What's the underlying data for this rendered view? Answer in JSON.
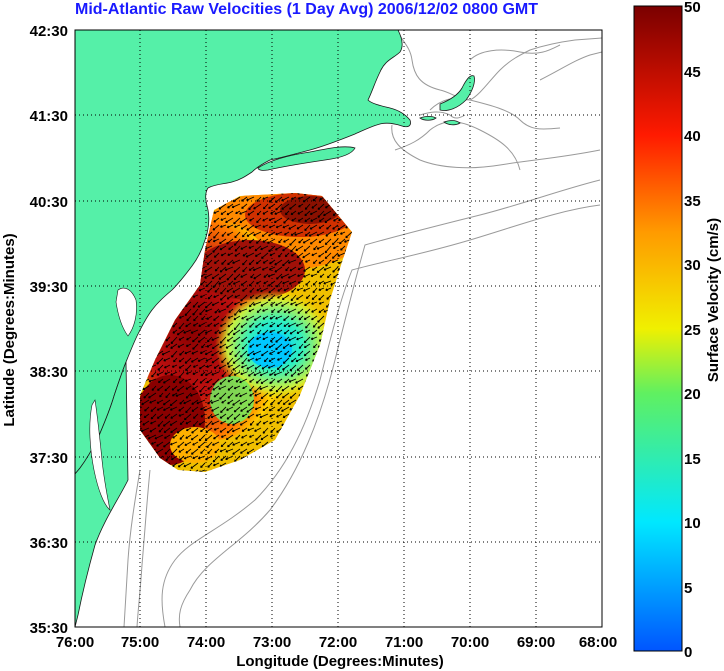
{
  "title": "Mid-Atlantic Raw Velocities (1 Day Avg) 2006/12/02 0800 GMT",
  "xlabel": "Longitude (Degrees:Minutes)",
  "ylabel": "Latitude (Degrees:Minutes)",
  "colorbar": {
    "label": "Surface Velocity (cm/s)",
    "ticks": [
      "0",
      "5",
      "10",
      "15",
      "20",
      "25",
      "30",
      "35",
      "40",
      "45",
      "50"
    ],
    "range": [
      0,
      50
    ]
  },
  "x_ticks": [
    "76:00",
    "75:00",
    "74:00",
    "73:00",
    "72:00",
    "71:00",
    "70:00",
    "69:00",
    "68:00"
  ],
  "y_ticks": [
    "42:30",
    "41:30",
    "40:30",
    "39:30",
    "38:30",
    "37:30",
    "36:30",
    "35:30"
  ],
  "colors": {
    "land": "#55f0a8",
    "title": "#1a1aff",
    "coast_outline": "#9a9a9a",
    "grid": "#000000"
  },
  "map_extent": {
    "lon_range_deg_west": [
      76,
      68
    ],
    "lat_range_deg_north": [
      35.5,
      42.5
    ]
  },
  "velocity_field": {
    "max_speed_region": "near coast 74:45W-74:00W, 37:45N-39:45N (~45-50 cm/s)",
    "min_speed_region": "offshore ~73:00W, 38:45N (~10-12 cm/s)",
    "typical_direction": "southwestward, along-shelf"
  }
}
